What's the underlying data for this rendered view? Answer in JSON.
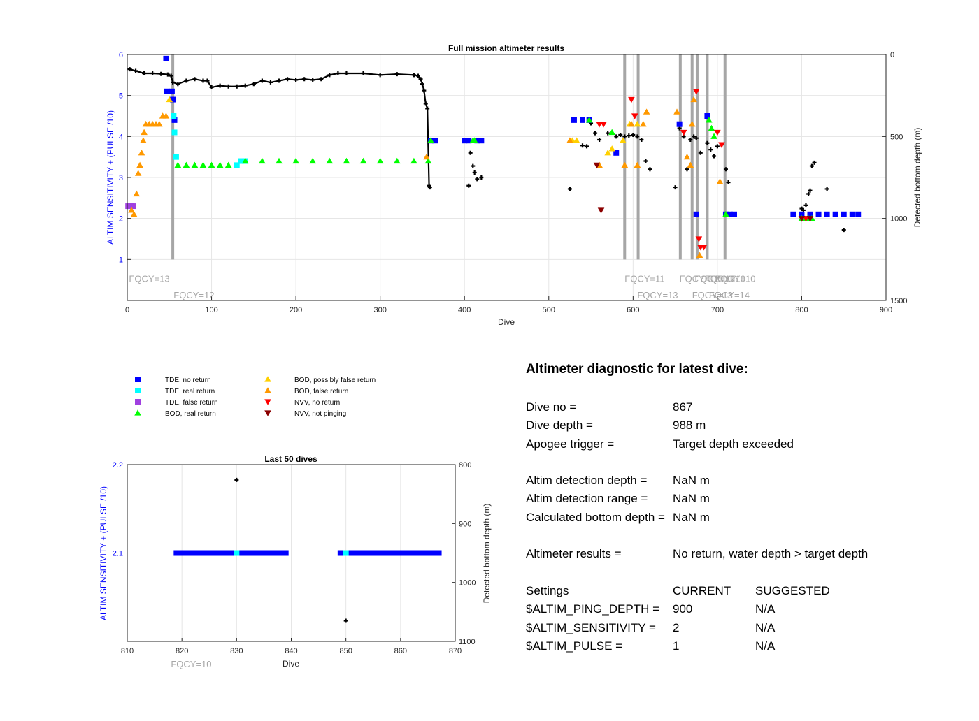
{
  "chart_data": [
    {
      "type": "scatter",
      "title": "Full mission altimeter results",
      "xlabel": "Dive",
      "ylabel": "ALTIM SENSITIVITY + (PULSE /10)",
      "ylabel_right": "Detected bottom depth (m)",
      "xlim": [
        0,
        900
      ],
      "ylim": [
        0,
        6
      ],
      "ylim_right": [
        0,
        1500
      ],
      "right_axis_reversed": true,
      "xticks": [
        "0",
        "100",
        "200",
        "300",
        "400",
        "500",
        "600",
        "700",
        "800",
        "900"
      ],
      "yticks": [
        "1",
        "2",
        "3",
        "4",
        "5",
        "6"
      ],
      "yticks_right": [
        "0",
        "500",
        "1000",
        "1500"
      ],
      "grid": true,
      "fqcy_labels": [
        {
          "text": "FQCY=13",
          "x": 2,
          "y": 0.45
        },
        {
          "text": "FQCY=12",
          "x": 55,
          "y": 0.05
        },
        {
          "text": "FQCY=11",
          "x": 590,
          "y": 0.45
        },
        {
          "text": "FQCY=13",
          "x": 605,
          "y": 0.05
        },
        {
          "text": "FQCY=12",
          "x": 655,
          "y": 0.45
        },
        {
          "text": "FQCY=12",
          "x": 673,
          "y": 0.45
        },
        {
          "text": "FQCY=10",
          "x": 685,
          "y": 0.45
        },
        {
          "text": "FQCY=10",
          "x": 697,
          "y": 0.45
        },
        {
          "text": "FQCY=13",
          "x": 670,
          "y": 0.05
        },
        {
          "text": "FQCY=14",
          "x": 690,
          "y": 0.05
        }
      ],
      "settings_change_dives": [
        54,
        590,
        606,
        656,
        670,
        676,
        688,
        709
      ],
      "series": [
        {
          "name": "TDE, no return",
          "color": "#0000ff",
          "points": [
            [
              46,
              5.9
            ],
            [
              47,
              5.1
            ],
            [
              53,
              5.1
            ],
            [
              54,
              4.9
            ],
            [
              56,
              4.4
            ],
            [
              360,
              3.9
            ],
            [
              365,
              3.9
            ],
            [
              400,
              3.9
            ],
            [
              405,
              3.9
            ],
            [
              415,
              3.9
            ],
            [
              420,
              3.9
            ],
            [
              530,
              4.4
            ],
            [
              540,
              4.4
            ],
            [
              548,
              4.4
            ],
            [
              580,
              3.6
            ],
            [
              655,
              4.3
            ],
            [
              675,
              2.1
            ],
            [
              688,
              4.5
            ],
            [
              710,
              2.1
            ],
            [
              715,
              2.1
            ],
            [
              720,
              2.1
            ],
            [
              790,
              2.1
            ],
            [
              800,
              2.1
            ],
            [
              810,
              2.1
            ],
            [
              820,
              2.1
            ],
            [
              830,
              2.1
            ],
            [
              840,
              2.1
            ],
            [
              850,
              2.1
            ],
            [
              860,
              2.1
            ],
            [
              867,
              2.1
            ]
          ]
        },
        {
          "name": "TDE, real return",
          "color": "#00ffff",
          "points": [
            [
              55,
              4.5
            ],
            [
              56,
              4.1
            ],
            [
              58,
              3.5
            ],
            [
              130,
              3.3
            ],
            [
              135,
              3.4
            ],
            [
              140,
              3.4
            ]
          ]
        },
        {
          "name": "TDE, false return",
          "color": "#a040e0",
          "points": [
            [
              1,
              2.3
            ],
            [
              3,
              2.3
            ],
            [
              5,
              2.3
            ],
            [
              7,
              2.3
            ]
          ]
        },
        {
          "name": "BOD, real return",
          "color": "#00ff00",
          "points": [
            [
              60,
              3.3
            ],
            [
              70,
              3.3
            ],
            [
              80,
              3.3
            ],
            [
              90,
              3.3
            ],
            [
              100,
              3.3
            ],
            [
              110,
              3.3
            ],
            [
              120,
              3.3
            ],
            [
              140,
              3.4
            ],
            [
              160,
              3.4
            ],
            [
              180,
              3.4
            ],
            [
              200,
              3.4
            ],
            [
              220,
              3.4
            ],
            [
              240,
              3.4
            ],
            [
              260,
              3.4
            ],
            [
              280,
              3.4
            ],
            [
              300,
              3.4
            ],
            [
              320,
              3.4
            ],
            [
              340,
              3.4
            ],
            [
              357,
              3.4
            ],
            [
              360,
              3.9
            ],
            [
              410,
              3.9
            ],
            [
              412,
              3.9
            ],
            [
              548,
              4.4
            ],
            [
              575,
              4.1
            ],
            [
              690,
              4.4
            ],
            [
              693,
              4.2
            ],
            [
              696,
              4.0
            ],
            [
              710,
              2.1
            ],
            [
              800,
              2.0
            ],
            [
              805,
              2.0
            ],
            [
              808,
              2.0
            ],
            [
              812,
              2.0
            ]
          ]
        },
        {
          "name": "BOD, possibly false return",
          "color": "#ffd000",
          "points": [
            [
              50,
              4.9
            ],
            [
              528,
              3.9
            ],
            [
              533,
              3.9
            ],
            [
              570,
              3.6
            ],
            [
              575,
              3.7
            ],
            [
              588,
              3.9
            ],
            [
              596,
              4.3
            ],
            [
              605,
              4.3
            ]
          ]
        },
        {
          "name": "BOD, false return",
          "color": "#ff9900",
          "points": [
            [
              5,
              2.2
            ],
            [
              8,
              2.1
            ],
            [
              11,
              2.6
            ],
            [
              13,
              3.1
            ],
            [
              15,
              3.3
            ],
            [
              17,
              3.6
            ],
            [
              19,
              3.9
            ],
            [
              20,
              4.1
            ],
            [
              22,
              4.3
            ],
            [
              26,
              4.3
            ],
            [
              30,
              4.3
            ],
            [
              34,
              4.3
            ],
            [
              38,
              4.3
            ],
            [
              42,
              4.5
            ],
            [
              46,
              4.5
            ],
            [
              355,
              3.5
            ],
            [
              525,
              3.9
            ],
            [
              560,
              3.3
            ],
            [
              590,
              3.3
            ],
            [
              598,
              4.3
            ],
            [
              605,
              3.3
            ],
            [
              612,
              4.3
            ],
            [
              616,
              4.6
            ],
            [
              652,
              4.6
            ],
            [
              664,
              3.5
            ],
            [
              668,
              3.3
            ],
            [
              670,
              4.3
            ],
            [
              672,
              4.9
            ],
            [
              679,
              1.1
            ],
            [
              703,
              2.9
            ]
          ]
        },
        {
          "name": "NVV, no return",
          "color": "#ff0000",
          "points": [
            [
              560,
              4.3
            ],
            [
              565,
              4.3
            ],
            [
              598,
              4.9
            ],
            [
              602,
              4.5
            ],
            [
              660,
              4.1
            ],
            [
              675,
              5.1
            ],
            [
              678,
              1.5
            ],
            [
              680,
              1.3
            ],
            [
              684,
              1.3
            ],
            [
              700,
              4.1
            ],
            [
              705,
              3.8
            ],
            [
              805,
              2.0
            ]
          ]
        },
        {
          "name": "NVV, not pinging",
          "color": "#8b0000",
          "points": [
            [
              557,
              3.3
            ],
            [
              562,
              2.2
            ],
            [
              800,
              2.0
            ],
            [
              810,
              2.0
            ]
          ]
        }
      ],
      "bottom_depth_line": [
        [
          3,
          90
        ],
        [
          10,
          100
        ],
        [
          20,
          115
        ],
        [
          30,
          115
        ],
        [
          40,
          118
        ],
        [
          48,
          122
        ],
        [
          52,
          130
        ],
        [
          54,
          170
        ],
        [
          60,
          180
        ],
        [
          70,
          160
        ],
        [
          80,
          150
        ],
        [
          90,
          160
        ],
        [
          95,
          160
        ],
        [
          100,
          200
        ],
        [
          110,
          190
        ],
        [
          120,
          195
        ],
        [
          130,
          195
        ],
        [
          140,
          190
        ],
        [
          150,
          180
        ],
        [
          160,
          160
        ],
        [
          170,
          170
        ],
        [
          180,
          160
        ],
        [
          190,
          150
        ],
        [
          200,
          155
        ],
        [
          210,
          150
        ],
        [
          220,
          155
        ],
        [
          230,
          150
        ],
        [
          240,
          125
        ],
        [
          250,
          115
        ],
        [
          260,
          115
        ],
        [
          280,
          115
        ],
        [
          300,
          125
        ],
        [
          320,
          120
        ],
        [
          340,
          125
        ],
        [
          345,
          130
        ],
        [
          348,
          150
        ],
        [
          350,
          180
        ],
        [
          352,
          220
        ],
        [
          354,
          300
        ],
        [
          356,
          330
        ],
        [
          358,
          800
        ],
        [
          359,
          810
        ]
      ],
      "bottom_depth_points": [
        [
          405,
          800
        ],
        [
          407,
          600
        ],
        [
          410,
          680
        ],
        [
          412,
          720
        ],
        [
          415,
          760
        ],
        [
          420,
          750
        ],
        [
          525,
          820
        ],
        [
          540,
          555
        ],
        [
          545,
          560
        ],
        [
          550,
          420
        ],
        [
          555,
          480
        ],
        [
          560,
          520
        ],
        [
          570,
          480
        ],
        [
          580,
          500
        ],
        [
          585,
          490
        ],
        [
          590,
          500
        ],
        [
          595,
          495
        ],
        [
          600,
          490
        ],
        [
          605,
          500
        ],
        [
          610,
          520
        ],
        [
          615,
          650
        ],
        [
          620,
          700
        ],
        [
          650,
          810
        ],
        [
          655,
          450
        ],
        [
          660,
          500
        ],
        [
          664,
          700
        ],
        [
          668,
          520
        ],
        [
          672,
          500
        ],
        [
          675,
          510
        ],
        [
          680,
          600
        ],
        [
          688,
          540
        ],
        [
          692,
          580
        ],
        [
          696,
          620
        ],
        [
          700,
          560
        ],
        [
          705,
          550
        ],
        [
          710,
          700
        ],
        [
          713,
          780
        ],
        [
          800,
          940
        ],
        [
          802,
          950
        ],
        [
          805,
          920
        ],
        [
          808,
          850
        ],
        [
          810,
          830
        ],
        [
          812,
          680
        ],
        [
          815,
          660
        ],
        [
          830,
          820
        ],
        [
          850,
          1070
        ]
      ]
    },
    {
      "type": "scatter",
      "title": "Last 50 dives",
      "xlabel": "Dive",
      "ylabel": "ALTIM SENSITIVITY + (PULSE /10)",
      "ylabel_right": "Detected bottom depth (m)",
      "xlim": [
        810,
        870
      ],
      "ylim": [
        2.0,
        2.2
      ],
      "ylim_right": [
        800,
        1100
      ],
      "right_axis_reversed": true,
      "xticks": [
        "810",
        "820",
        "830",
        "840",
        "850",
        "860",
        "870"
      ],
      "yticks": [
        "2.1",
        "2.2"
      ],
      "yticks_right": [
        "800",
        "900",
        "1000",
        "1100"
      ],
      "grid": true,
      "fqcy_labels": [
        {
          "text": "FQCY=10",
          "x": 819,
          "y": 1.985
        }
      ],
      "series": [
        {
          "name": "TDE, no return",
          "color": "#0000ff",
          "x_from": 819,
          "x_to": 839,
          "x_from2": 849,
          "x_to2": 867,
          "y": 2.1
        },
        {
          "name": "TDE, real return",
          "color": "#00ffff",
          "points": [
            [
              830,
              2.1
            ],
            [
              850,
              2.1
            ]
          ]
        }
      ],
      "bottom_depth_points": [
        [
          830,
          826
        ],
        [
          850,
          1065
        ]
      ]
    }
  ],
  "legend": [
    {
      "label": "TDE, no return",
      "color": "#0000ff",
      "marker": "square"
    },
    {
      "label": "TDE, real return",
      "color": "#00ffff",
      "marker": "square"
    },
    {
      "label": "TDE, false return",
      "color": "#a040e0",
      "marker": "square"
    },
    {
      "label": "BOD, real return",
      "color": "#00ff00",
      "marker": "triangle-up"
    },
    {
      "label": "BOD, possibly false return",
      "color": "#ffd000",
      "marker": "triangle-up"
    },
    {
      "label": "BOD, false return",
      "color": "#ff9900",
      "marker": "triangle-up"
    },
    {
      "label": "NVV, no return",
      "color": "#ff0000",
      "marker": "triangle-down"
    },
    {
      "label": "NVV, not pinging",
      "color": "#8b0000",
      "marker": "triangle-down"
    }
  ],
  "diagnostic": {
    "title": "Altimeter diagnostic for latest dive:",
    "dive_no_label": "Dive no =",
    "dive_no": "867",
    "dive_depth_label": "Dive depth =",
    "dive_depth": "988 m",
    "apogee_label": "Apogee trigger =",
    "apogee": "Target depth exceeded",
    "det_depth_label": "Altim detection depth =",
    "det_depth": "NaN m",
    "det_range_label": "Altim detection range =",
    "det_range": "NaN m",
    "calc_depth_label": "Calculated bottom depth =",
    "calc_depth": "NaN m",
    "results_label": "Altimeter results =",
    "results": "No return, water depth > target depth",
    "settings_label": "Settings",
    "current_label": "CURRENT",
    "suggested_label": "SUGGESTED",
    "ping_label": "$ALTIM_PING_DEPTH =",
    "ping_current": "900",
    "ping_suggested": "N/A",
    "sens_label": "$ALTIM_SENSITIVITY =",
    "sens_current": "2",
    "sens_suggested": "N/A",
    "pulse_label": "$ALTIM_PULSE =",
    "pulse_current": "1",
    "pulse_suggested": "N/A"
  }
}
